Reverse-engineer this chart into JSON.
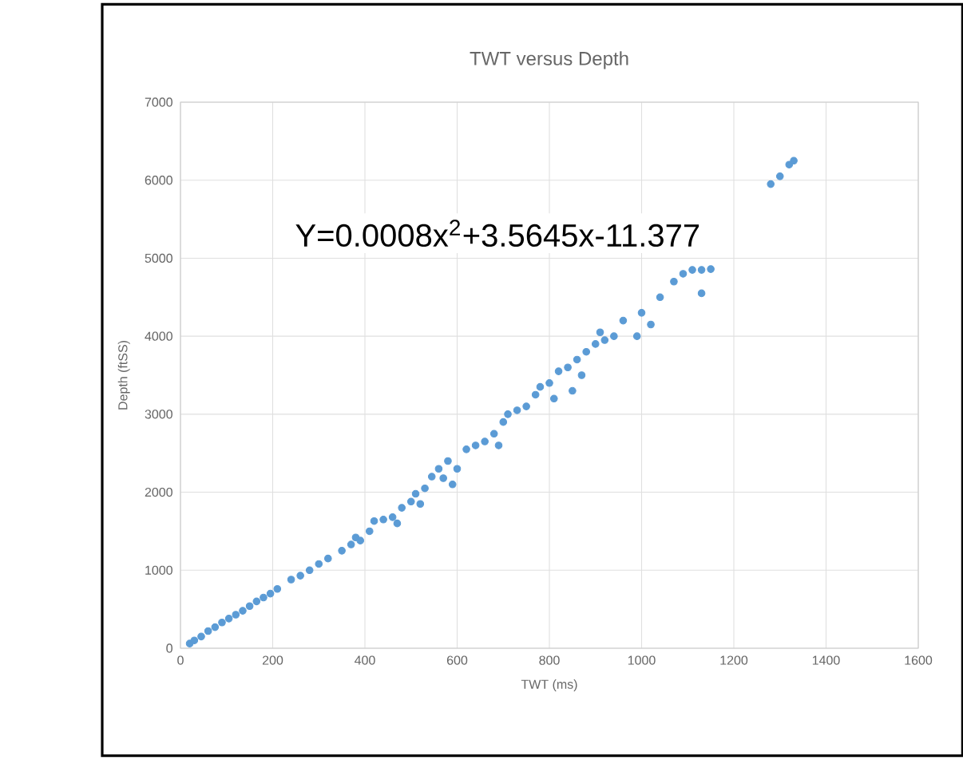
{
  "chart_data": {
    "type": "scatter",
    "title": "TWT versus Depth",
    "xlabel": "TWT (ms)",
    "ylabel": "Depth (ftSS)",
    "annotations": [
      "Y=0.0008x$^{2}$+3.5645x-11.377"
    ],
    "xlim": [
      0,
      1600
    ],
    "xticks": [
      0,
      200,
      400,
      600,
      800,
      1000,
      1200,
      1400,
      1600
    ],
    "ylim": [
      0,
      7000
    ],
    "yticks": [
      0,
      1000,
      2000,
      3000,
      4000,
      5000,
      6000,
      7000
    ],
    "grid": true,
    "marker": "circle",
    "color": "#5b9bd5",
    "x": [
      20,
      30,
      45,
      60,
      75,
      90,
      105,
      120,
      135,
      150,
      165,
      180,
      195,
      210,
      240,
      260,
      280,
      300,
      320,
      350,
      370,
      380,
      390,
      410,
      420,
      440,
      460,
      470,
      480,
      500,
      510,
      520,
      530,
      545,
      560,
      570,
      580,
      590,
      600,
      620,
      640,
      660,
      680,
      690,
      700,
      710,
      730,
      750,
      770,
      780,
      800,
      810,
      820,
      840,
      850,
      860,
      870,
      880,
      900,
      910,
      920,
      940,
      960,
      990,
      1000,
      1020,
      1040,
      1070,
      1090,
      1110,
      1130,
      1150,
      1130,
      1280,
      1300,
      1320,
      1330
    ],
    "values": [
      60,
      100,
      150,
      220,
      270,
      330,
      380,
      430,
      480,
      540,
      600,
      650,
      700,
      760,
      880,
      930,
      1000,
      1080,
      1150,
      1250,
      1330,
      1420,
      1380,
      1500,
      1630,
      1650,
      1680,
      1600,
      1800,
      1880,
      1980,
      1850,
      2050,
      2200,
      2300,
      2180,
      2400,
      2100,
      2300,
      2550,
      2600,
      2650,
      2750,
      2600,
      2900,
      3000,
      3050,
      3100,
      3250,
      3350,
      3400,
      3200,
      3550,
      3600,
      3300,
      3700,
      3500,
      3800,
      3900,
      4050,
      3950,
      4000,
      4200,
      4000,
      4300,
      4150,
      4500,
      4700,
      4800,
      4850,
      4850,
      4860,
      4550,
      5950,
      6050,
      6200,
      6250
    ]
  }
}
